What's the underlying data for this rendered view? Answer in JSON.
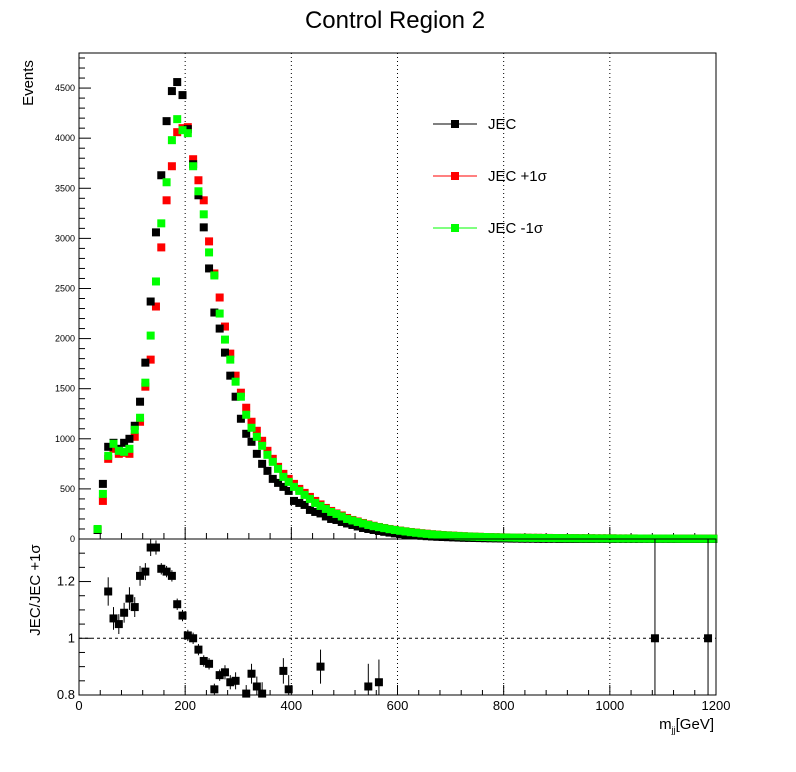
{
  "chart_data": [
    {
      "type": "scatter",
      "title": "Control Region 2",
      "ylabel": "Events",
      "xlim": [
        0,
        1200
      ],
      "ylim": [
        0,
        4850
      ],
      "grid": "vertical-dotted",
      "legend_position": "top-right",
      "yticks": [
        "0",
        "500",
        "1000",
        "1500",
        "2000",
        "2500",
        "3000",
        "3500",
        "4000",
        "4500"
      ],
      "x": [
        25,
        35,
        45,
        55,
        65,
        75,
        85,
        95,
        105,
        115,
        125,
        135,
        145,
        155,
        165,
        175,
        185,
        195,
        205,
        215,
        225,
        235,
        245,
        255,
        265,
        275,
        285,
        295,
        305,
        315,
        325,
        335,
        345,
        355,
        365,
        375,
        385,
        395,
        405,
        415,
        425,
        435,
        445,
        455,
        465,
        475,
        485,
        495,
        505,
        515,
        525,
        535,
        545,
        555,
        565,
        575,
        585,
        595,
        605,
        615,
        625,
        635,
        645,
        655,
        665,
        675,
        685,
        695,
        705,
        715,
        725,
        735,
        745,
        755,
        765,
        775,
        785,
        795,
        805,
        815,
        825,
        835,
        845,
        855,
        865,
        875,
        885,
        895,
        905,
        915,
        925,
        935,
        945,
        955,
        965,
        975,
        985,
        995,
        1005,
        1015,
        1025,
        1035,
        1045,
        1055,
        1065,
        1075,
        1085,
        1095,
        1105,
        1115,
        1125,
        1135,
        1145,
        1155,
        1165,
        1175,
        1185,
        1195
      ],
      "series": [
        {
          "name": "JEC",
          "color": "#000000",
          "values": [
            0,
            90,
            550,
            920,
            960,
            900,
            960,
            1000,
            1130,
            1370,
            1760,
            2370,
            3060,
            3630,
            4170,
            4470,
            4560,
            4430,
            4090,
            3740,
            3430,
            3110,
            2700,
            2260,
            2100,
            1860,
            1630,
            1420,
            1200,
            1050,
            970,
            850,
            750,
            680,
            600,
            560,
            520,
            480,
            380,
            360,
            340,
            290,
            270,
            255,
            225,
            200,
            190,
            170,
            155,
            140,
            125,
            110,
            100,
            90,
            80,
            72,
            64,
            56,
            50,
            44,
            40,
            36,
            32,
            28,
            25,
            22,
            20,
            18,
            16,
            14,
            12,
            11,
            10,
            9,
            8,
            7,
            6,
            5,
            5,
            4,
            4,
            3,
            3,
            3,
            2,
            2,
            2,
            2,
            1,
            1,
            1,
            1,
            1,
            1,
            1,
            1,
            1,
            1,
            1,
            1,
            1,
            1,
            1,
            1,
            1,
            1,
            1,
            1,
            1,
            1,
            1,
            1,
            1,
            1,
            1,
            1,
            1,
            1
          ]
        },
        {
          "name": "JEC +1σ",
          "color": "#ff0000",
          "values": [
            0,
            90,
            380,
            800,
            900,
            850,
            860,
            850,
            1020,
            1170,
            1520,
            1790,
            2320,
            2910,
            3380,
            3720,
            4060,
            4100,
            4110,
            3790,
            3580,
            3380,
            2970,
            2650,
            2410,
            2120,
            1850,
            1630,
            1460,
            1310,
            1170,
            1080,
            980,
            880,
            800,
            720,
            650,
            600,
            550,
            500,
            460,
            420,
            380,
            345,
            310,
            280,
            255,
            235,
            210,
            190,
            175,
            160,
            145,
            132,
            120,
            110,
            100,
            92,
            84,
            77,
            70,
            64,
            58,
            53,
            48,
            44,
            40,
            37,
            34,
            31,
            28,
            26,
            24,
            22,
            20,
            19,
            18,
            17,
            16,
            15,
            14,
            13,
            13,
            12,
            12,
            11,
            11,
            10,
            10,
            9,
            9,
            9,
            8,
            8,
            8,
            7,
            7,
            7,
            7,
            6,
            6,
            6,
            6,
            5,
            5,
            5,
            5,
            5,
            5,
            4,
            4,
            4,
            4,
            4,
            4,
            4,
            4,
            4
          ]
        },
        {
          "name": "JEC -1σ",
          "color": "#00ff00",
          "values": [
            0,
            100,
            450,
            830,
            950,
            880,
            870,
            900,
            1090,
            1210,
            1560,
            2030,
            2570,
            3150,
            3560,
            3980,
            4190,
            4080,
            4050,
            3720,
            3470,
            3240,
            2860,
            2630,
            2250,
            1990,
            1790,
            1570,
            1420,
            1240,
            1110,
            1020,
            930,
            840,
            770,
            700,
            620,
            570,
            520,
            480,
            440,
            400,
            360,
            330,
            300,
            270,
            250,
            225,
            200,
            185,
            170,
            155,
            140,
            128,
            118,
            108,
            98,
            90,
            82,
            75,
            68,
            62,
            56,
            51,
            46,
            42,
            38,
            35,
            32,
            29,
            27,
            25,
            23,
            21,
            20,
            18,
            17,
            16,
            15,
            14,
            13,
            12,
            12,
            11,
            11,
            10,
            10,
            9,
            9,
            8,
            8,
            8,
            7,
            7,
            7,
            6,
            6,
            6,
            6,
            5,
            5,
            5,
            5,
            5,
            4,
            4,
            4,
            4,
            4,
            4,
            4,
            3,
            3,
            3,
            3,
            3,
            3,
            3
          ]
        }
      ]
    },
    {
      "type": "scatter",
      "ylabel": "JEC/JEC +1σ",
      "xlabel": "m",
      "xlabel_sub": "jj",
      "xlabel_unit": "[GeV]",
      "xlim": [
        0,
        1200
      ],
      "ylim": [
        0.8,
        1.35
      ],
      "grid": "vertical-dotted",
      "reference_line": 1,
      "xticks": [
        "0",
        "200",
        "400",
        "600",
        "800",
        "1000",
        "1200"
      ],
      "yticks": [
        "0.8",
        "1",
        "1.2"
      ],
      "series": [
        {
          "name": "JEC/JEC +1σ",
          "color": "#000000",
          "points": [
            {
              "x": 55,
              "y": 1.165,
              "err": 0.05
            },
            {
              "x": 65,
              "y": 1.07,
              "err": 0.04
            },
            {
              "x": 75,
              "y": 1.05,
              "err": 0.035
            },
            {
              "x": 85,
              "y": 1.09,
              "err": 0.035
            },
            {
              "x": 95,
              "y": 1.14,
              "err": 0.04
            },
            {
              "x": 105,
              "y": 1.11,
              "err": 0.035
            },
            {
              "x": 115,
              "y": 1.22,
              "err": 0.035
            },
            {
              "x": 125,
              "y": 1.235,
              "err": 0.03
            },
            {
              "x": 135,
              "y": 1.32,
              "err": 0.03
            },
            {
              "x": 145,
              "y": 1.32,
              "err": 0.025
            },
            {
              "x": 155,
              "y": 1.245,
              "err": 0.02
            },
            {
              "x": 165,
              "y": 1.235,
              "err": 0.02
            },
            {
              "x": 175,
              "y": 1.22,
              "err": 0.02
            },
            {
              "x": 185,
              "y": 1.12,
              "err": 0.02
            },
            {
              "x": 195,
              "y": 1.08,
              "err": 0.02
            },
            {
              "x": 205,
              "y": 1.01,
              "err": 0.02
            },
            {
              "x": 215,
              "y": 1.0,
              "err": 0.02
            },
            {
              "x": 225,
              "y": 0.96,
              "err": 0.02
            },
            {
              "x": 235,
              "y": 0.92,
              "err": 0.02
            },
            {
              "x": 245,
              "y": 0.91,
              "err": 0.02
            },
            {
              "x": 255,
              "y": 0.82,
              "err": 0.02
            },
            {
              "x": 265,
              "y": 0.87,
              "err": 0.02
            },
            {
              "x": 275,
              "y": 0.88,
              "err": 0.025
            },
            {
              "x": 285,
              "y": 0.845,
              "err": 0.025
            },
            {
              "x": 295,
              "y": 0.85,
              "err": 0.03
            },
            {
              "x": 315,
              "y": 0.805,
              "err": 0.03
            },
            {
              "x": 325,
              "y": 0.875,
              "err": 0.035
            },
            {
              "x": 335,
              "y": 0.83,
              "err": 0.035
            },
            {
              "x": 345,
              "y": 0.805,
              "err": 0.04
            },
            {
              "x": 385,
              "y": 0.885,
              "err": 0.045
            },
            {
              "x": 395,
              "y": 0.82,
              "err": 0.05
            },
            {
              "x": 455,
              "y": 0.9,
              "err": 0.06
            },
            {
              "x": 545,
              "y": 0.83,
              "err": 0.08
            },
            {
              "x": 565,
              "y": 0.845,
              "err": 0.08
            },
            {
              "x": 1085,
              "y": 1.0,
              "err": 0.6
            },
            {
              "x": 1185,
              "y": 1.0,
              "err": 0.6
            }
          ]
        }
      ]
    }
  ]
}
